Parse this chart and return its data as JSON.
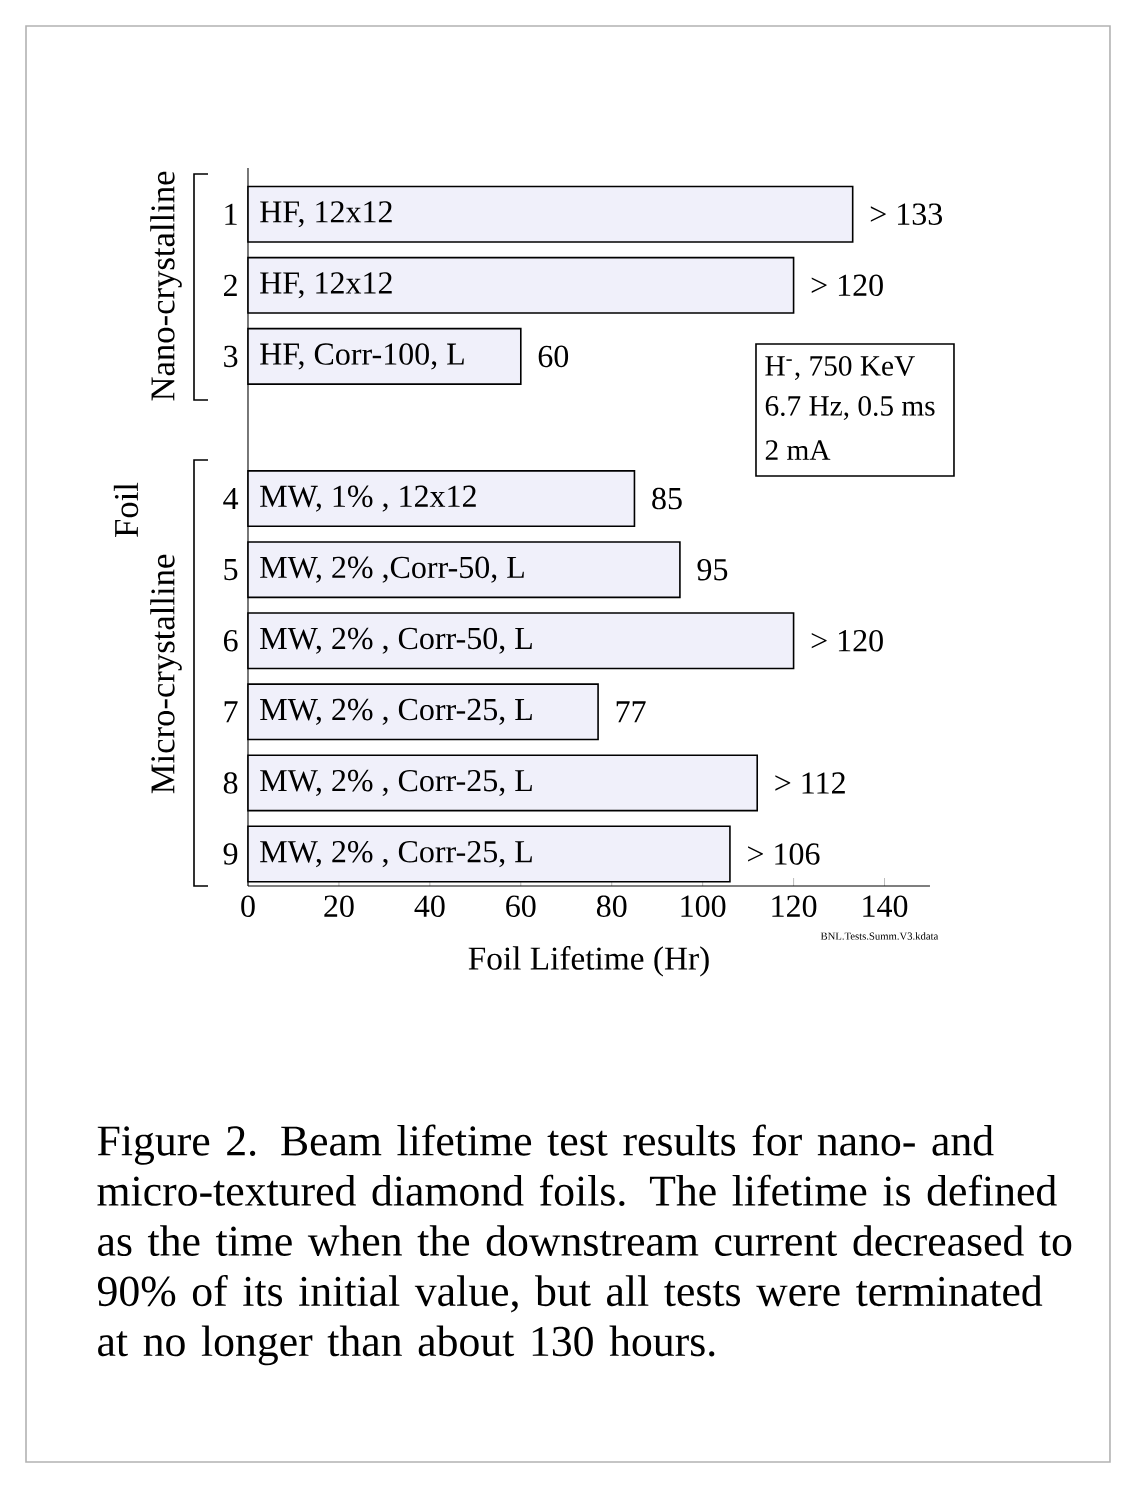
{
  "chart_data": {
    "type": "bar",
    "orientation": "horizontal",
    "categories": [
      "1",
      "2",
      "3",
      null,
      "4",
      "5",
      "6",
      "7",
      "8",
      "9"
    ],
    "values": [
      133,
      120,
      60,
      null,
      85,
      95,
      120,
      77,
      112,
      106
    ],
    "value_labels": [
      "> 133",
      "> 120",
      "60",
      null,
      "85",
      "95",
      "> 120",
      "77",
      "> 112",
      "> 106"
    ],
    "color": "#f0f0fa",
    "xlim": [
      0,
      150
    ],
    "xticks": [
      0,
      20,
      40,
      60,
      80,
      100,
      120,
      140
    ],
    "xlabel": "Foil Lifetime (Hr)",
    "ylabel": "Foil",
    "annotations": [
      {
        "text": "HF, 12x12",
        "y": "1"
      },
      {
        "text": "HF, 12x12",
        "y": "2"
      },
      {
        "text": "HF, Corr-100, L",
        "y": "3"
      },
      {
        "text": "MW, 1% , 12x12",
        "y": "4"
      },
      {
        "text": "MW, 2% ,Corr-50, L",
        "y": "5"
      },
      {
        "text": "MW, 2% , Corr-50, L",
        "y": "6"
      },
      {
        "text": "MW, 2% , Corr-25, L",
        "y": "7"
      },
      {
        "text": "MW, 2% , Corr-25, L",
        "y": "8"
      },
      {
        "text": "MW, 2% , Corr-25, L",
        "y": "9"
      },
      "Nano-crystalline",
      "Micro-crystalline",
      "H$^{-}$, 750 KeV",
      "6.7 Hz, 0.5 ms",
      "2 mA",
      "BNL.Tests.Summ.V3.kdata",
      "Figure 2. Beam lifetime test results for nano- and micro-textured diamond foils.  The lifetime is defined as the time when the downstream current decreased to 90% of its initial value, but all tests were terminated at no longer than about 130 hours."
    ]
  }
}
